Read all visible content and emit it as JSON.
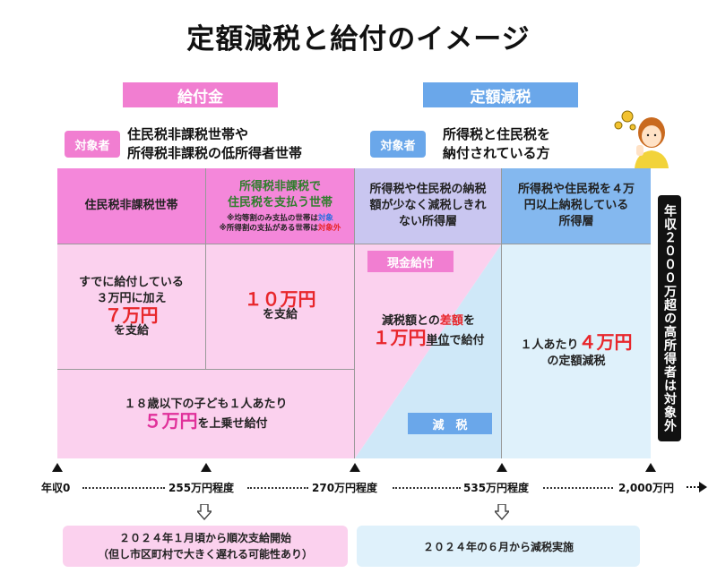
{
  "title": "定額減税と給付のイメージ",
  "headers": {
    "left": "給付金",
    "right": "定額減税"
  },
  "targets": {
    "badge": "対象者",
    "left_line1": "住民税非課税世帯や",
    "left_line2": "所得税非課税の低所得者世帯",
    "right_line1": "所得税と住民税を",
    "right_line2": "納付されている方"
  },
  "table": {
    "col1_header": "住民税非課税世帯",
    "col2_header_line1": "所得税非課税で",
    "col2_header_line2": "住民税を支払う世帯",
    "col2_note1_a": "※均等割のみ支払の世帯は",
    "col2_note1_b": "対象",
    "col2_note2_a": "※所得割の支払がある世帯は",
    "col2_note2_b": "対象外",
    "col3_header_line1": "所得税や住民税の納税",
    "col3_header_line2": "額が少なく減税しきれ",
    "col3_header_line3": "ない所得層",
    "col4_header_line1": "所得税や住民税を４万",
    "col4_header_line2": "円以上納税している",
    "col4_header_line3": "所得層",
    "col1_body_line1": "すでに給付している",
    "col1_body_line2": "３万円に加え",
    "col1_body_amount": "７万円",
    "col1_body_suffix": "を支給",
    "col2_body_amount": "１０万円",
    "col2_body_suffix": "を支給",
    "col3_cash_label": "現金給付",
    "col3_body_a": "減税額との",
    "col3_body_b": "差額",
    "col3_body_c": "を",
    "col3_body_amount": "１万円",
    "col3_body_unit": "単位",
    "col3_body_suffix": "で給付",
    "col3_tax_label": "減　税",
    "col4_body_prefix": "１人あたり",
    "col4_body_amount": "４万円",
    "col4_body_suffix": "の定額減税",
    "child_line1": "１８歳以下の子ども１人あたり",
    "child_amount": "５万円",
    "child_suffix": "を上乗せ給付"
  },
  "side_label": "年収２０００万超の高所得者は対象外",
  "axis": {
    "ticks": [
      "年収0",
      "255万円程度",
      "270万円程度",
      "535万円程度",
      "2,000万円"
    ]
  },
  "bottom": {
    "left_line1": "２０２４年１月頃から順次支給開始",
    "left_line2": "（但し市区町村で大きく遅れる可能性あり）",
    "right": "２０２４年の６月から減税実施"
  },
  "colors": {
    "pink": "#f17ed1",
    "blue": "#6aa7ea",
    "red": "#e8262b"
  }
}
